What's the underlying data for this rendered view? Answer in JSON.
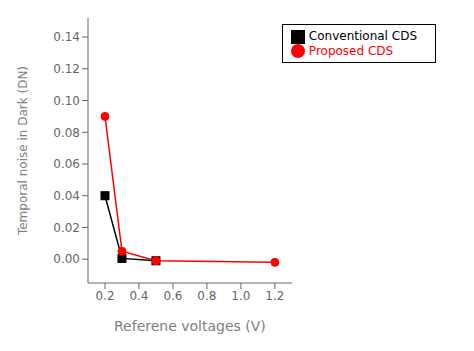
{
  "chart_data": {
    "type": "line",
    "xlabel": "Referene voltages (V)",
    "ylabel": "Temporal noise in Dark (DN)",
    "series": [
      {
        "name": "Conventional CDS",
        "color": "#000000",
        "marker": "square",
        "x": [
          0.2,
          0.3,
          0.5
        ],
        "values": [
          0.04,
          0.0005,
          -0.001
        ]
      },
      {
        "name": "Proposed CDS",
        "color": "#ff0000",
        "marker": "circle",
        "x": [
          0.2,
          0.3,
          0.5,
          1.2
        ],
        "values": [
          0.09,
          0.005,
          -0.001,
          -0.002
        ]
      }
    ],
    "xlim": [
      0.1,
      1.3
    ],
    "ylim": [
      -0.015,
      0.152
    ],
    "xticks": [
      0.2,
      0.4,
      0.6,
      0.8,
      {
        "value": 1.0,
        "label": "1.0"
      },
      1.2
    ],
    "yticks": [
      {
        "value": 0.0,
        "label": "0.00"
      },
      0.02,
      0.04,
      0.06,
      0.08,
      {
        "value": 0.1,
        "label": "0.10"
      },
      0.12,
      0.14
    ],
    "grid": false,
    "legend": "upper right"
  }
}
